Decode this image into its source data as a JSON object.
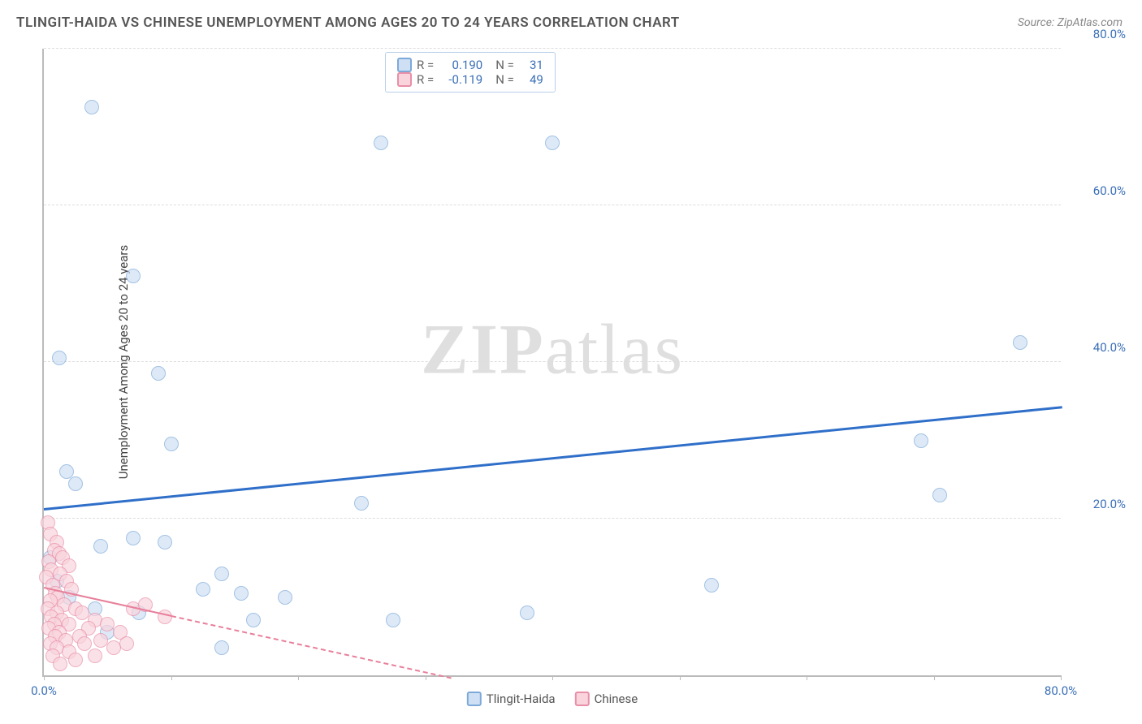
{
  "title": "TLINGIT-HAIDA VS CHINESE UNEMPLOYMENT AMONG AGES 20 TO 24 YEARS CORRELATION CHART",
  "source": "Source: ZipAtlas.com",
  "y_axis_label": "Unemployment Among Ages 20 to 24 years",
  "watermark_bold": "ZIP",
  "watermark_light": "atlas",
  "chart": {
    "type": "scatter",
    "xlim": [
      0,
      80
    ],
    "ylim": [
      0,
      80
    ],
    "x_ticks": [
      0,
      10,
      20,
      30,
      40,
      50,
      60,
      70,
      80
    ],
    "y_ticks": [
      20,
      40,
      60,
      80
    ],
    "x_tick_labels": {
      "0": "0.0%",
      "80": "80.0%"
    },
    "y_tick_labels": {
      "20": "20.0%",
      "40": "40.0%",
      "60": "60.0%",
      "80": "80.0%"
    },
    "grid_color": "#dddddd",
    "axis_color": "#bbbbbb",
    "background_color": "#ffffff",
    "tick_label_color": "#3b6fb6",
    "point_radius": 9,
    "point_stroke_width": 1.5,
    "series": [
      {
        "name": "Tlingit-Haida",
        "fill": "#cfe0f5",
        "stroke": "#7da9d8",
        "fill_opacity": 0.7,
        "r_value": "0.190",
        "n_value": "31",
        "trend": {
          "x1": 0,
          "y1": 21.5,
          "x2": 80,
          "y2": 34.5,
          "color": "#2f6fc9",
          "width": 3,
          "dash": "solid"
        },
        "points": [
          [
            3.8,
            72.5
          ],
          [
            26.5,
            68.0
          ],
          [
            40.0,
            68.0
          ],
          [
            7.0,
            51.0
          ],
          [
            76.8,
            42.5
          ],
          [
            1.2,
            40.5
          ],
          [
            9.0,
            38.5
          ],
          [
            69.0,
            30.0
          ],
          [
            10.0,
            29.5
          ],
          [
            1.8,
            26.0
          ],
          [
            2.5,
            24.5
          ],
          [
            70.5,
            23.0
          ],
          [
            25.0,
            22.0
          ],
          [
            7.0,
            17.5
          ],
          [
            9.5,
            17.0
          ],
          [
            4.5,
            16.5
          ],
          [
            14.0,
            13.0
          ],
          [
            1.0,
            12.0
          ],
          [
            52.5,
            11.5
          ],
          [
            12.5,
            11.0
          ],
          [
            15.5,
            10.5
          ],
          [
            19.0,
            10.0
          ],
          [
            4.0,
            8.5
          ],
          [
            38.0,
            8.0
          ],
          [
            16.5,
            7.0
          ],
          [
            27.5,
            7.0
          ],
          [
            7.5,
            8.0
          ],
          [
            14.0,
            3.5
          ],
          [
            0.5,
            15.0
          ],
          [
            2.0,
            10.0
          ],
          [
            5.0,
            5.5
          ]
        ]
      },
      {
        "name": "Chinese",
        "fill": "#f9d4dd",
        "stroke": "#e98fa8",
        "fill_opacity": 0.7,
        "r_value": "-0.119",
        "n_value": "49",
        "trend": {
          "x1": 0,
          "y1": 11.5,
          "x2": 32,
          "y2": 0.0,
          "color": "#e87f9b",
          "width": 2,
          "dash": "dashed"
        },
        "trend_solid_until": 10,
        "points": [
          [
            0.3,
            19.5
          ],
          [
            0.5,
            18.0
          ],
          [
            1.0,
            17.0
          ],
          [
            0.8,
            16.0
          ],
          [
            1.2,
            15.5
          ],
          [
            1.5,
            15.0
          ],
          [
            0.4,
            14.5
          ],
          [
            2.0,
            14.0
          ],
          [
            0.6,
            13.5
          ],
          [
            1.3,
            13.0
          ],
          [
            0.2,
            12.5
          ],
          [
            1.8,
            12.0
          ],
          [
            0.7,
            11.5
          ],
          [
            2.2,
            11.0
          ],
          [
            0.9,
            10.5
          ],
          [
            1.1,
            10.0
          ],
          [
            0.5,
            9.5
          ],
          [
            1.6,
            9.0
          ],
          [
            0.3,
            8.5
          ],
          [
            2.5,
            8.5
          ],
          [
            1.0,
            8.0
          ],
          [
            0.6,
            7.5
          ],
          [
            3.0,
            8.0
          ],
          [
            1.4,
            7.0
          ],
          [
            0.8,
            6.5
          ],
          [
            2.0,
            6.5
          ],
          [
            0.4,
            6.0
          ],
          [
            4.0,
            7.0
          ],
          [
            1.2,
            5.5
          ],
          [
            3.5,
            6.0
          ],
          [
            0.9,
            5.0
          ],
          [
            5.0,
            6.5
          ],
          [
            1.7,
            4.5
          ],
          [
            2.8,
            5.0
          ],
          [
            6.0,
            5.5
          ],
          [
            0.5,
            4.0
          ],
          [
            4.5,
            4.5
          ],
          [
            7.0,
            8.5
          ],
          [
            1.0,
            3.5
          ],
          [
            3.2,
            4.0
          ],
          [
            8.0,
            9.0
          ],
          [
            5.5,
            3.5
          ],
          [
            2.0,
            3.0
          ],
          [
            6.5,
            4.0
          ],
          [
            9.5,
            7.5
          ],
          [
            4.0,
            2.5
          ],
          [
            0.7,
            2.5
          ],
          [
            2.5,
            2.0
          ],
          [
            1.3,
            1.5
          ]
        ]
      }
    ]
  },
  "stats_legend": {
    "border_color": "#b9cfe8",
    "r_label": "R =",
    "n_label": "N =",
    "value_color": "#3b6fb6",
    "label_color": "#666666"
  },
  "series_legend": {
    "label_color": "#555555"
  }
}
